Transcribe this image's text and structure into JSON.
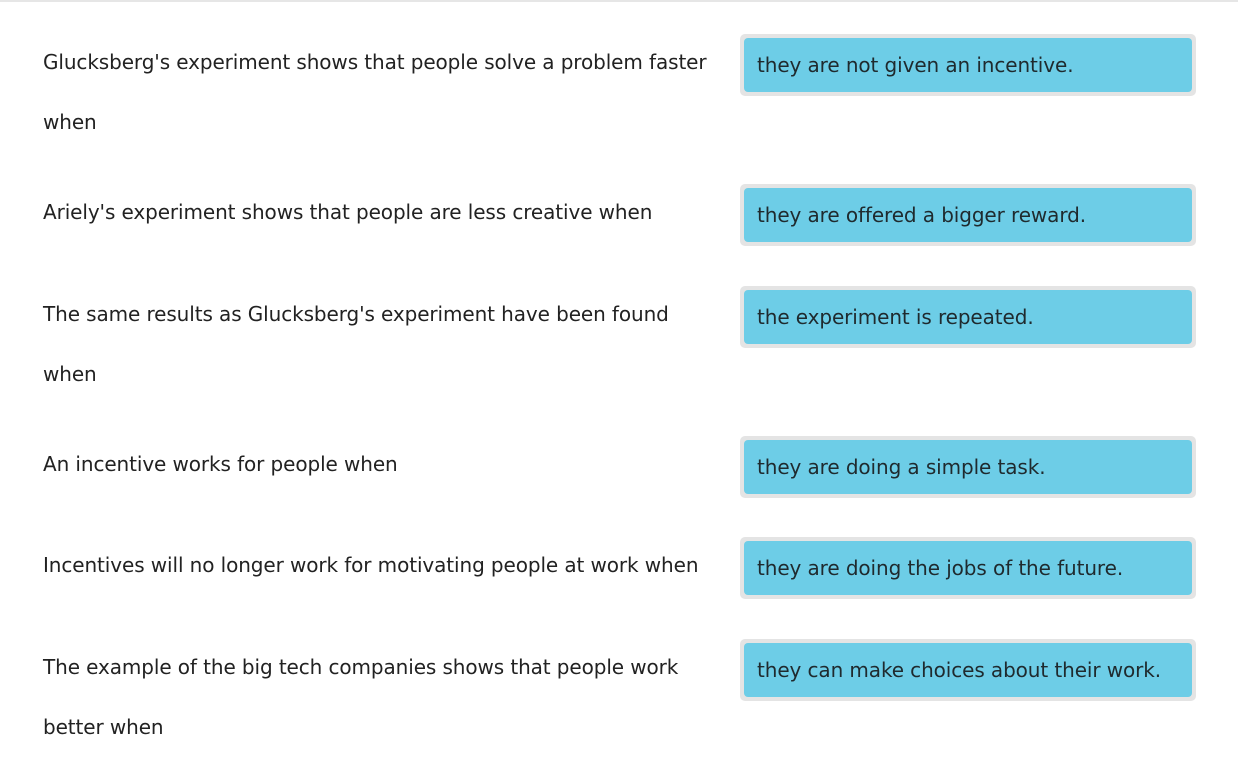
{
  "matches": [
    {
      "prompt": "Glucksberg's experiment shows that people solve a problem faster when",
      "answer": "they are not given an incentive."
    },
    {
      "prompt": "Ariely's experiment shows that people are less creative when",
      "answer": "they are offered a bigger reward."
    },
    {
      "prompt": "The same results as Glucksberg's experiment have been found when",
      "answer": "the experiment is repeated."
    },
    {
      "prompt": "An incentive works for people when",
      "answer": "they are doing a simple task."
    },
    {
      "prompt": "Incentives will no longer work for motivating people at work when",
      "answer": "they are doing the jobs of the future."
    },
    {
      "prompt": "The example of the big tech companies shows that people work better when",
      "answer": "they can make choices about their work."
    }
  ]
}
